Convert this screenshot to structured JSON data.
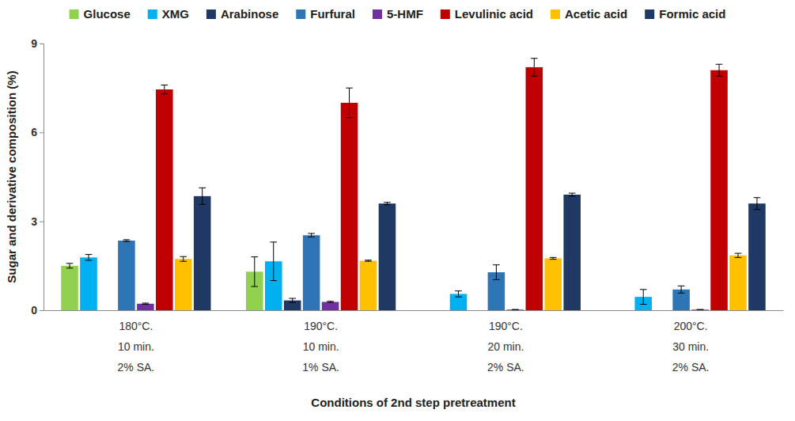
{
  "chart_data": {
    "type": "bar",
    "categories": [
      [
        "180°C.",
        "10 min.",
        "2% SA."
      ],
      [
        "190°C.",
        "10 min.",
        "1% SA."
      ],
      [
        "190°C.",
        "20 min.",
        "2% SA."
      ],
      [
        "200°C.",
        "30 min.",
        "2% SA."
      ]
    ],
    "x_label": "Conditions of 2nd step pretreatment",
    "y_label": "Sugar and derivative composition (%)",
    "ylim": [
      0,
      9
    ],
    "yticks": [
      0,
      3,
      6,
      9
    ],
    "grid": false,
    "legend": "top",
    "series": [
      {
        "name": "Glucose",
        "color": "#92d050",
        "values": [
          1.5,
          1.3,
          null,
          null
        ],
        "errors": [
          0.08,
          0.5,
          null,
          null
        ]
      },
      {
        "name": "XMG",
        "color": "#00b0f0",
        "values": [
          1.78,
          1.65,
          0.55,
          0.45
        ],
        "errors": [
          0.1,
          0.65,
          0.1,
          0.25
        ]
      },
      {
        "name": "Arabinose",
        "color": "#1f3864",
        "values": [
          null,
          0.33,
          null,
          null
        ],
        "errors": [
          null,
          0.07,
          null,
          null
        ]
      },
      {
        "name": "Furfural",
        "color": "#2e75b6",
        "values": [
          2.35,
          2.53,
          1.28,
          0.7
        ],
        "errors": [
          0.03,
          0.06,
          0.25,
          0.12
        ]
      },
      {
        "name": "5-HMF",
        "color": "#7030a0",
        "values": [
          0.22,
          0.28,
          0.02,
          0.02
        ],
        "errors": [
          0.02,
          0.02,
          0.0,
          0.0
        ]
      },
      {
        "name": "Levulinic acid",
        "color": "#c00000",
        "values": [
          7.45,
          7.0,
          8.2,
          8.1
        ],
        "errors": [
          0.15,
          0.5,
          0.3,
          0.2
        ]
      },
      {
        "name": "Acetic acid",
        "color": "#ffc000",
        "values": [
          1.73,
          1.67,
          1.75,
          1.85
        ],
        "errors": [
          0.08,
          0.02,
          0.03,
          0.07
        ]
      },
      {
        "name": "Formic acid",
        "color": "#203864",
        "values": [
          3.85,
          3.6,
          3.9,
          3.6
        ],
        "errors": [
          0.28,
          0.04,
          0.05,
          0.2
        ]
      }
    ]
  }
}
